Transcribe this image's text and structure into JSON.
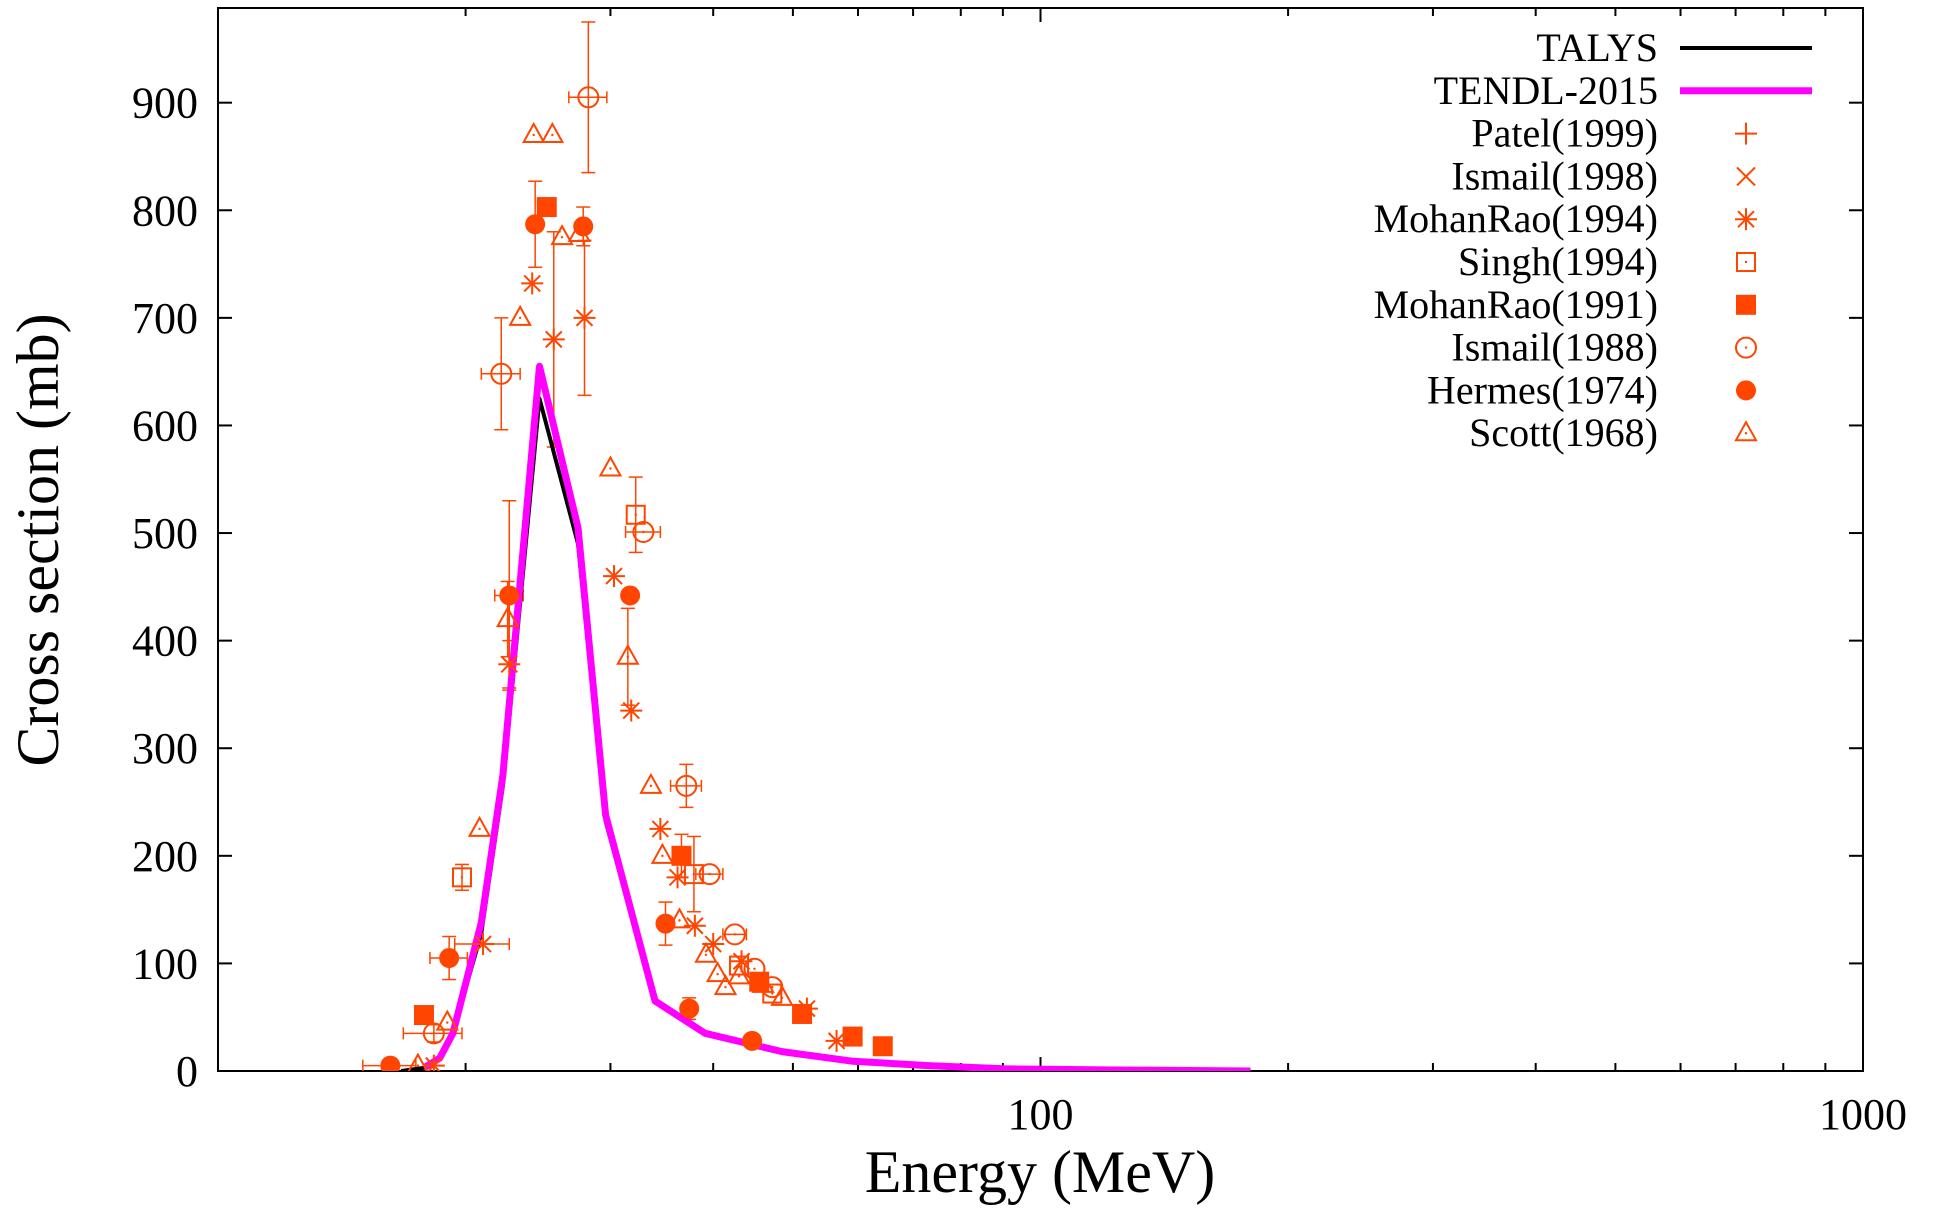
{
  "chart_data": {
    "type": "scatter",
    "xlabel": "Energy (MeV)",
    "ylabel": "Cross section (mb)",
    "xscale": "log",
    "xlim": [
      10,
      1000
    ],
    "ylim": [
      0,
      988
    ],
    "xticks": [
      {
        "value": 100,
        "label": "100"
      },
      {
        "value": 1000,
        "label": "1000"
      }
    ],
    "yticks": [
      0,
      100,
      200,
      300,
      400,
      500,
      600,
      700,
      800,
      900
    ],
    "grid": false,
    "legend_position": "top-right",
    "colors": {
      "talys": "#000000",
      "tendl": "#ff00ff",
      "exp": "#ff4500"
    },
    "lines": [
      {
        "name": "TALYS",
        "color": "#000000",
        "x": [
          16.7,
          17.8,
          18.6,
          19.3,
          20.9,
          22.2,
          23.4,
          24.6,
          27.4,
          29.6,
          34.0,
          39.1,
          48.5,
          59.2,
          73.0,
          90.0,
          120,
          180
        ],
        "y": [
          0,
          3,
          12,
          35,
          128,
          265,
          450,
          625,
          490,
          232,
          65,
          35,
          18,
          9,
          5,
          2,
          1,
          0
        ]
      },
      {
        "name": "TENDL-2015",
        "color": "#ff00ff",
        "x": [
          17.8,
          18.6,
          19.3,
          20.9,
          22.2,
          23.4,
          24.6,
          27.4,
          29.6,
          34.0,
          39.1,
          48.5,
          59.2,
          73.0,
          90.0,
          120,
          180
        ],
        "y": [
          3,
          12,
          35,
          138,
          275,
          470,
          655,
          505,
          238,
          65,
          35,
          18,
          9,
          5,
          2,
          1,
          0
        ]
      }
    ],
    "series": [
      {
        "name": "Patel(1999)",
        "marker": "plus",
        "points": []
      },
      {
        "name": "Ismail(1998)",
        "marker": "cross",
        "points": []
      },
      {
        "name": "MohanRao(1994)",
        "marker": "star",
        "points": [
          {
            "x": 18.3,
            "y": 5
          },
          {
            "x": 21.0,
            "y": 118,
            "xerr": 1.6
          },
          {
            "x": 22.6,
            "y": 378,
            "yerr": 22
          },
          {
            "x": 24.1,
            "y": 732
          },
          {
            "x": 25.6,
            "y": 680,
            "yerr": 100
          },
          {
            "x": 27.9,
            "y": 700,
            "yerr": 72
          },
          {
            "x": 30.3,
            "y": 460
          },
          {
            "x": 31.8,
            "y": 335
          },
          {
            "x": 34.5,
            "y": 225
          },
          {
            "x": 36.2,
            "y": 180
          },
          {
            "x": 38.0,
            "y": 135
          },
          {
            "x": 40.0,
            "y": 118
          },
          {
            "x": 43.3,
            "y": 102
          },
          {
            "x": 52.0,
            "y": 58
          },
          {
            "x": 56.5,
            "y": 28
          }
        ]
      },
      {
        "name": "Singh(1994)",
        "marker": "square-open",
        "points": [
          {
            "x": 19.8,
            "y": 180,
            "yerr": 12
          },
          {
            "x": 32.2,
            "y": 517,
            "yerr": 35
          },
          {
            "x": 37.9,
            "y": 183,
            "yerr": 35
          },
          {
            "x": 43.0,
            "y": 98
          },
          {
            "x": 47.2,
            "y": 72
          }
        ]
      },
      {
        "name": "MohanRao(1991)",
        "marker": "square-filled",
        "points": [
          {
            "x": 17.8,
            "y": 52
          },
          {
            "x": 25.1,
            "y": 803
          },
          {
            "x": 36.6,
            "y": 200,
            "yerr": 20
          },
          {
            "x": 45.5,
            "y": 83
          },
          {
            "x": 51.3,
            "y": 53
          },
          {
            "x": 59.1,
            "y": 32
          },
          {
            "x": 64.3,
            "y": 23
          }
        ]
      },
      {
        "name": "Ismail(1988)",
        "marker": "circle-open",
        "points": [
          {
            "x": 18.3,
            "y": 35,
            "xerr": 1.5,
            "yerr": 8
          },
          {
            "x": 22.1,
            "y": 648,
            "xerr": 1.2,
            "yerr": 52
          },
          {
            "x": 28.2,
            "y": 905,
            "xerr": 1.5,
            "yerr": 70
          },
          {
            "x": 32.9,
            "y": 501,
            "xerr": 1.6
          },
          {
            "x": 37.1,
            "y": 265,
            "xerr": 1.6,
            "yerr": 20
          },
          {
            "x": 39.6,
            "y": 183,
            "xerr": 1.5
          },
          {
            "x": 42.5,
            "y": 127,
            "xerr": 1.4
          },
          {
            "x": 44.9,
            "y": 95
          },
          {
            "x": 47.2,
            "y": 78
          }
        ]
      },
      {
        "name": "Hermes(1974)",
        "marker": "circle-filled",
        "points": [
          {
            "x": 16.2,
            "y": 5,
            "xerr": 1.2
          },
          {
            "x": 19.1,
            "y": 105,
            "xerr": 1.0,
            "yerr": 20
          },
          {
            "x": 22.6,
            "y": 442,
            "xerr": 0.9,
            "yerr": 88
          },
          {
            "x": 24.3,
            "y": 787,
            "yerr": 40
          },
          {
            "x": 27.8,
            "y": 785,
            "yerr": 18
          },
          {
            "x": 31.7,
            "y": 442
          },
          {
            "x": 35.0,
            "y": 137,
            "yerr": 20
          },
          {
            "x": 37.4,
            "y": 58,
            "yerr": 10
          },
          {
            "x": 44.6,
            "y": 28
          }
        ]
      },
      {
        "name": "Scott(1968)",
        "marker": "triangle-open",
        "points": [
          {
            "x": 17.5,
            "y": 5
          },
          {
            "x": 19.0,
            "y": 45
          },
          {
            "x": 20.8,
            "y": 225
          },
          {
            "x": 22.5,
            "y": 420,
            "yerr": 35
          },
          {
            "x": 23.3,
            "y": 700
          },
          {
            "x": 24.2,
            "y": 870
          },
          {
            "x": 25.5,
            "y": 870
          },
          {
            "x": 26.2,
            "y": 775
          },
          {
            "x": 27.5,
            "y": 778
          },
          {
            "x": 30.0,
            "y": 560
          },
          {
            "x": 31.5,
            "y": 385,
            "yerr": 45
          },
          {
            "x": 33.6,
            "y": 265
          },
          {
            "x": 34.7,
            "y": 200
          },
          {
            "x": 36.4,
            "y": 140
          },
          {
            "x": 39.2,
            "y": 108
          },
          {
            "x": 40.5,
            "y": 90
          },
          {
            "x": 41.4,
            "y": 78
          },
          {
            "x": 43.0,
            "y": 88
          },
          {
            "x": 46.0,
            "y": 80
          },
          {
            "x": 48.5,
            "y": 68
          }
        ]
      }
    ]
  }
}
